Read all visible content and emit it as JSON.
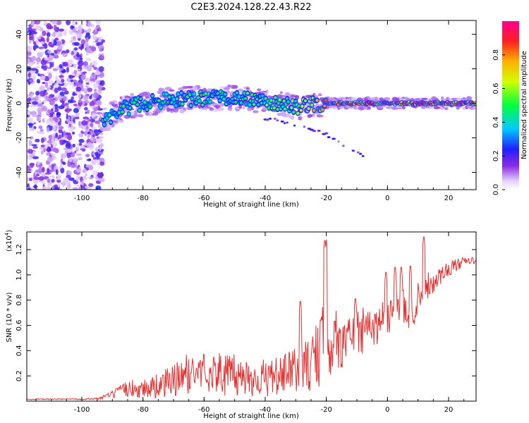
{
  "title": "C2E3.2024.128.22.43.R22",
  "colors": {
    "snr_line": "#e83232",
    "spectrogram_noise": "#a070ff",
    "spectrogram_core": "#ff2020"
  },
  "colorbar": {
    "label": "Normalized spectral amplitude",
    "ticks": [
      "0.0",
      "0.2",
      "0.4",
      "0.6",
      "0.8"
    ],
    "range": [
      0,
      1
    ],
    "colormap": "rainbow (purple → blue → cyan → green → yellow → orange → red → magenta)"
  },
  "chart_data": [
    {
      "type": "heatmap",
      "title": "C2E3.2024.128.22.43.R22",
      "xlabel": "Height of straight line (km)",
      "ylabel": "Frequency (Hz)",
      "xlim": [
        -118,
        29
      ],
      "ylim": [
        -50,
        48
      ],
      "xticks": [
        "-100",
        "-80",
        "-60",
        "-40",
        "-20",
        "0",
        "20"
      ],
      "yticks": [
        "40",
        "20",
        "0",
        "-20",
        "-40"
      ],
      "grid": false,
      "noise_region_x": [
        -118,
        -93
      ],
      "ridge": {
        "x": [
          -93,
          -88,
          -80,
          -70,
          -60,
          -50,
          -40,
          -30,
          -20,
          -10,
          0,
          10,
          20,
          29
        ],
        "frequency": [
          -10,
          -4,
          0,
          2,
          3,
          3,
          1,
          -2,
          0,
          0,
          0,
          0,
          0,
          0
        ],
        "amplitude": [
          0.45,
          0.5,
          0.5,
          0.5,
          0.5,
          0.5,
          0.55,
          0.55,
          0.9,
          0.9,
          0.85,
          0.9,
          0.9,
          0.85
        ]
      },
      "secondary_branch": {
        "x": [
          -40,
          -35,
          -30,
          -25,
          -20,
          -15,
          -8
        ],
        "frequency": [
          -9,
          -10,
          -13,
          -15,
          -18,
          -24,
          -30
        ]
      }
    },
    {
      "type": "line",
      "xlabel": "Height of straight line (km)",
      "ylabel": "SNR (10 * v/v)",
      "ylabel_multiplier": "(x10",
      "ylabel_exponent": "4",
      "ylabel_multiplier_close": ")",
      "xlim": [
        -118,
        29
      ],
      "ylim": [
        0,
        1.34
      ],
      "xticks": [
        "-100",
        "-80",
        "-60",
        "-40",
        "-20",
        "0",
        "20"
      ],
      "yticks": [
        "1.2",
        "1.0",
        "0.8",
        "0.6",
        "0.4",
        "0.2"
      ],
      "grid": false,
      "series": [
        {
          "x": [
            -118,
            -100,
            -95,
            -90,
            -85,
            -80,
            -75,
            -70,
            -65,
            -60,
            -55,
            -50,
            -45,
            -40,
            -35,
            -30,
            -25,
            -22,
            -20,
            -18,
            -15,
            -10,
            -5,
            0,
            5,
            8,
            10,
            15,
            20,
            25,
            29
          ],
          "mean": [
            0.015,
            0.015,
            0.02,
            0.05,
            0.1,
            0.1,
            0.12,
            0.16,
            0.22,
            0.24,
            0.22,
            0.2,
            0.19,
            0.18,
            0.2,
            0.25,
            0.3,
            0.38,
            0.5,
            0.48,
            0.47,
            0.53,
            0.58,
            0.68,
            0.75,
            0.6,
            0.85,
            0.95,
            1.05,
            1.1,
            1.12
          ],
          "noise": [
            0.005,
            0.005,
            0.008,
            0.03,
            0.07,
            0.08,
            0.1,
            0.14,
            0.16,
            0.16,
            0.17,
            0.17,
            0.17,
            0.15,
            0.15,
            0.18,
            0.22,
            0.3,
            0.35,
            0.28,
            0.22,
            0.2,
            0.18,
            0.15,
            0.15,
            0.15,
            0.12,
            0.1,
            0.06,
            0.04,
            0.03
          ],
          "peaks": [
            [
              -20.5,
              1.3
            ],
            [
              -20.0,
              1.28
            ],
            [
              11.9,
              1.33
            ],
            [
              -0.5,
              1.05
            ],
            [
              -28.5,
              0.82
            ],
            [
              4.5,
              1.09
            ],
            [
              7.5,
              1.1
            ],
            [
              -10.5,
              0.84
            ],
            [
              2.5,
              1.09
            ]
          ]
        }
      ]
    }
  ]
}
